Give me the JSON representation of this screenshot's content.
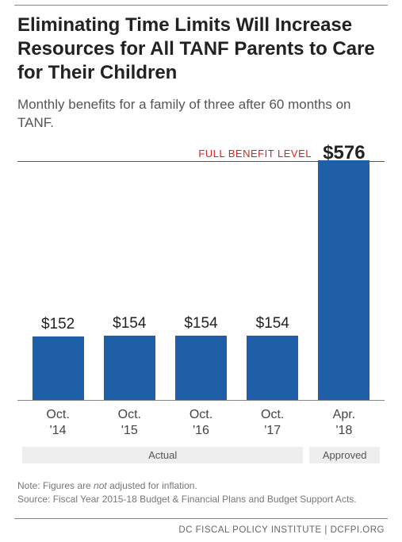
{
  "title": "Eliminating Time Limits Will Increase Resources for All TANF Parents to Care for Their Children",
  "subtitle": "Monthly benefits for a family of three after 60 months on TANF.",
  "chart": {
    "type": "bar",
    "categories": [
      "Oct. '14",
      "Oct. '15",
      "Oct. '16",
      "Oct. '17",
      "Apr. '18"
    ],
    "values": [
      152,
      154,
      154,
      154,
      576
    ],
    "value_labels": [
      "$152",
      "$154",
      "$154",
      "$154",
      "$576"
    ],
    "bar_color": "#1f5fa7",
    "y_max": 610,
    "full_benefit_level": 576,
    "full_benefit_label": "FULL BENEFIT LEVEL",
    "full_benefit_line_color": "#e02020",
    "axis_line_color": "#888888",
    "background_color": "#ffffff",
    "value_fontsize": 19,
    "big_value_fontsize": 24,
    "xlabel_fontsize": 16,
    "category_spans": [
      {
        "label": "Actual",
        "cols": 4
      },
      {
        "label": "Approved",
        "cols": 1
      }
    ],
    "category_bg": "#eeeeee"
  },
  "notes": {
    "line1_pre": "Note: Figures are ",
    "line1_em": "not",
    "line1_post": " adjusted for inflation.",
    "line2": "Source: Fiscal Year 2015-18 Budget & Financial Plans and Budget Support Acts."
  },
  "footer": "DC FISCAL POLICY INSTITUTE | DCFPI.ORG"
}
